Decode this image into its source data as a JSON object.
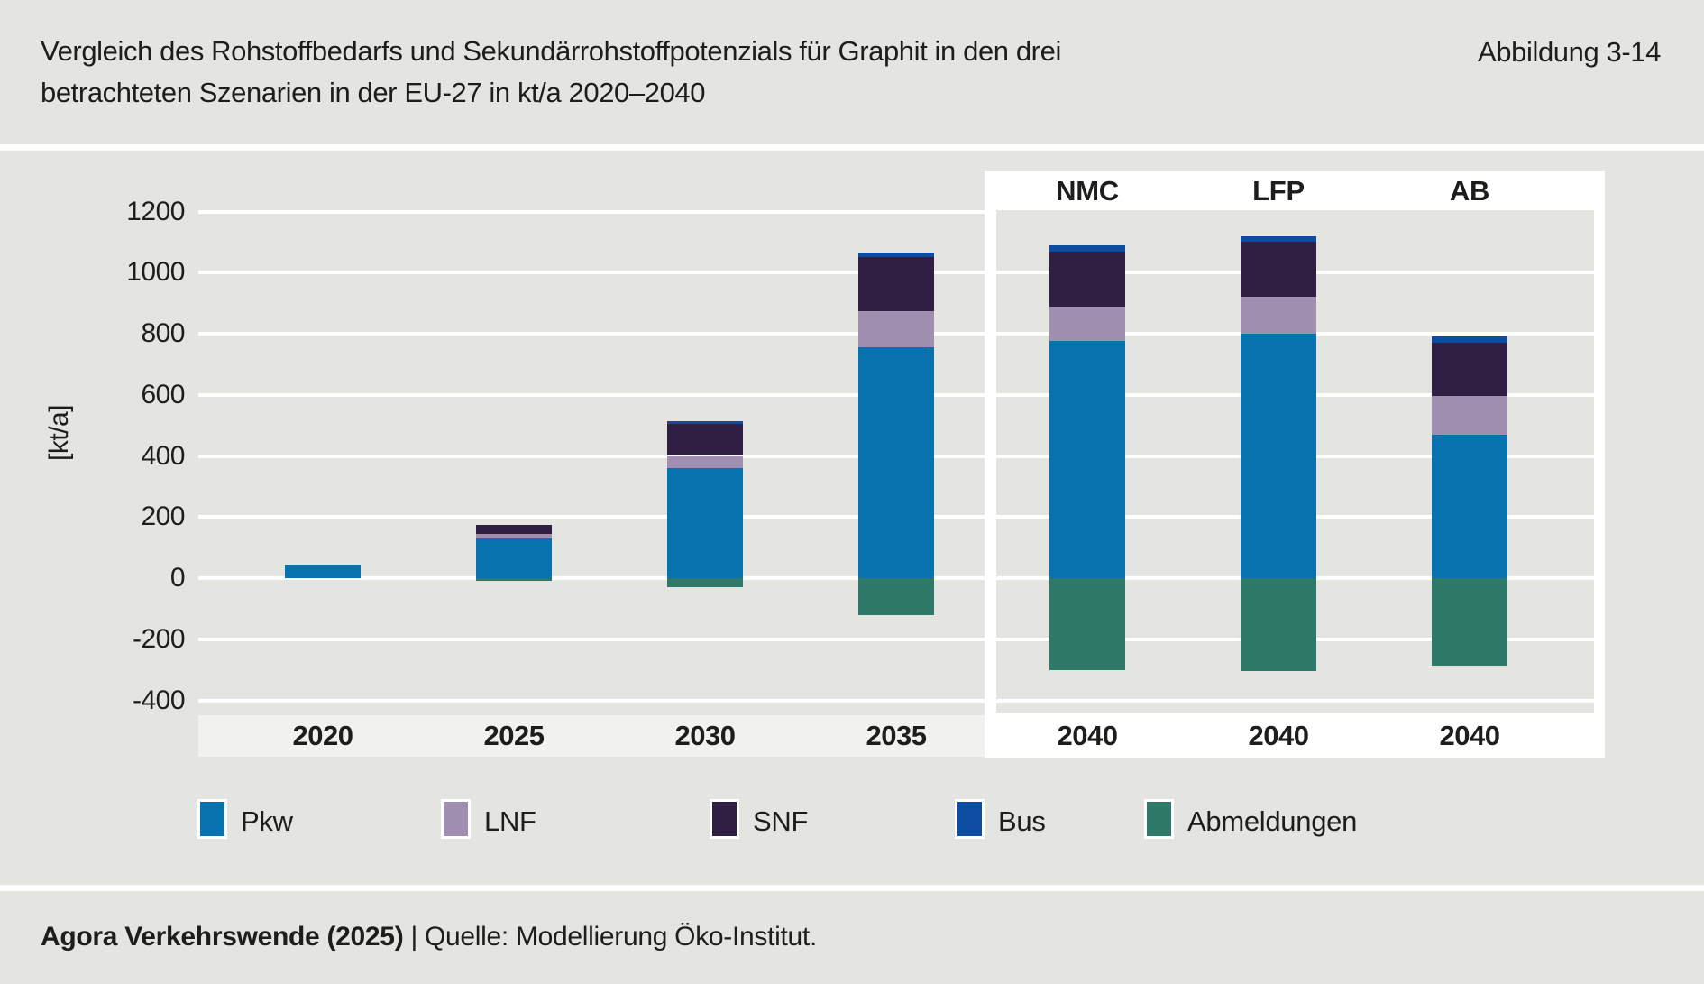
{
  "header": {
    "title_line1": "Vergleich des Rohstoffbedarfs und Sekundärrohstoffpotenzials für Graphit in den drei",
    "title_line2": "betrachteten Szenarien in der EU-27 in kt/a 2020–2040",
    "figure_label": "Abbildung 3-14"
  },
  "y_axis": {
    "label": "[kt/a]",
    "ticks": [
      "1200",
      "1000",
      "800",
      "600",
      "400",
      "200",
      "0",
      "-200",
      "-400"
    ]
  },
  "x_axis": {
    "labels": [
      "2020",
      "2025",
      "2030",
      "2035",
      "2040",
      "2040",
      "2040"
    ]
  },
  "scenario_headers": [
    "NMC",
    "LFP",
    "AB"
  ],
  "legend": {
    "items": [
      {
        "label": "Pkw",
        "color": "#0872AF"
      },
      {
        "label": "LNF",
        "color": "#A18FB2"
      },
      {
        "label": "SNF",
        "color": "#2F1F42"
      },
      {
        "label": "Bus",
        "color": "#0D4DA1"
      },
      {
        "label": "Abmeldungen",
        "color": "#2F7968"
      }
    ]
  },
  "footer": {
    "source_bold": "Agora Verkehrswende (2025)",
    "source_regular": "| Quelle: Modellierung Öko-Institut."
  },
  "colors": {
    "background": "#E4E5E1",
    "panel": "#FFFFFF",
    "axis_band": "#F1F2EE",
    "gridline": "#FFFFFF",
    "text": "#1D1D1B"
  },
  "chart_data": {
    "type": "bar",
    "stacked": true,
    "title": "Vergleich des Rohstoffbedarfs und Sekundärrohstoffpotenzials für Graphit in den drei betrachteten Szenarien in der EU-27 in kt/a 2020–2040",
    "categories": [
      "2020",
      "2025",
      "2030",
      "2035",
      "2040 (NMC)",
      "2040 (LFP)",
      "2040 (AB)"
    ],
    "series": [
      {
        "name": "Pkw",
        "color": "#0872AF",
        "values": [
          45,
          130,
          360,
          755,
          775,
          800,
          470
        ]
      },
      {
        "name": "LNF",
        "color": "#A18FB2",
        "values": [
          0,
          15,
          40,
          120,
          115,
          120,
          125
        ]
      },
      {
        "name": "SNF",
        "color": "#2F1F42",
        "values": [
          0,
          30,
          105,
          175,
          180,
          180,
          175
        ]
      },
      {
        "name": "Bus",
        "color": "#0D4DA1",
        "values": [
          0,
          0,
          10,
          15,
          20,
          20,
          20
        ]
      },
      {
        "name": "Abmeldungen",
        "color": "#2F7968",
        "values": [
          0,
          -10,
          -30,
          -120,
          -300,
          -305,
          -285
        ]
      }
    ],
    "ylabel": "[kt/a]",
    "ylim": [
      -400,
      1200
    ],
    "ytick_step": 200,
    "grid": true,
    "legend_position": "bottom",
    "units": "kt/a"
  }
}
